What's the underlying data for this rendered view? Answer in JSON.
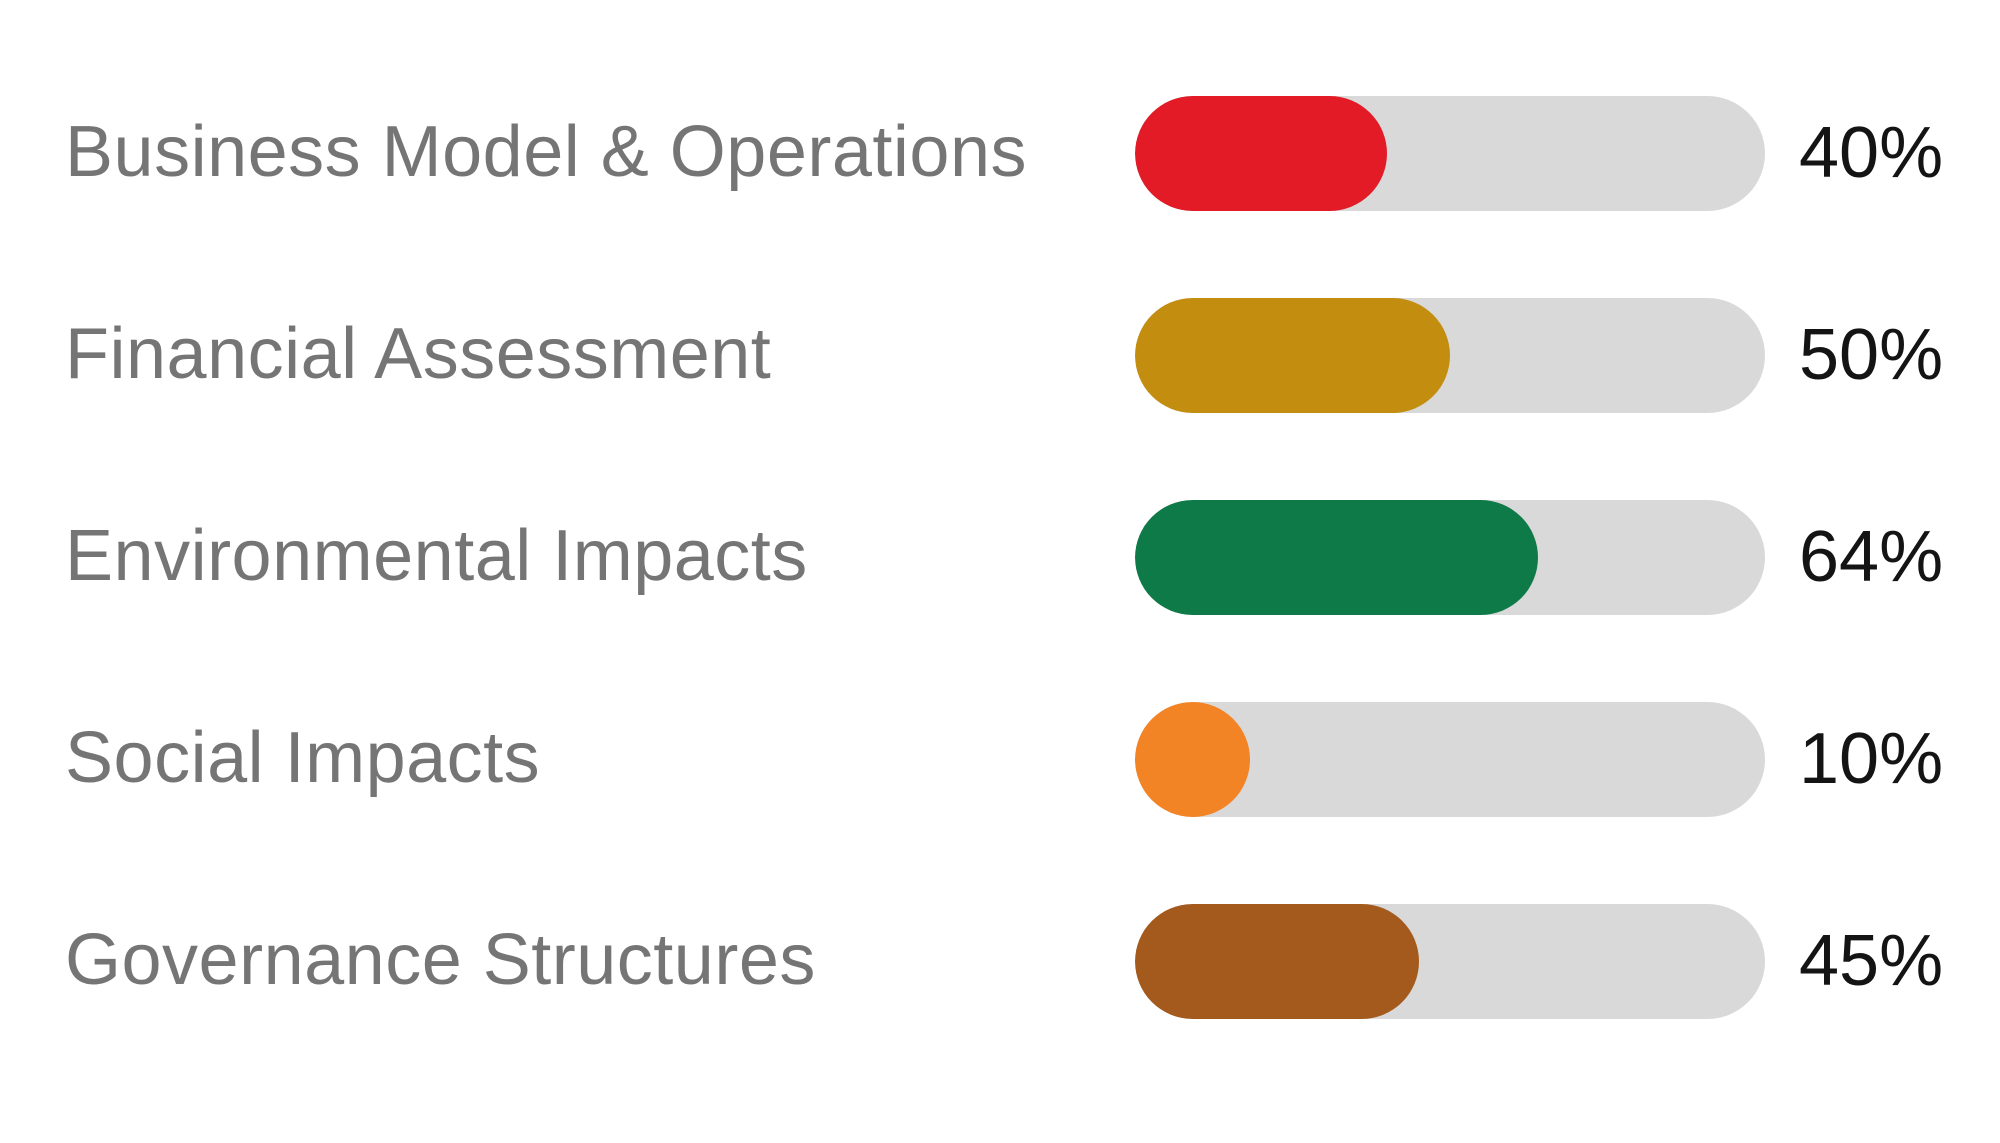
{
  "chart_data": {
    "type": "bar",
    "orientation": "horizontal",
    "title": "",
    "xlabel": "",
    "ylabel": "",
    "xlim": [
      0,
      100
    ],
    "grid": false,
    "legend": "none",
    "track_color": "#d9d9d9",
    "label_color": "#757575",
    "value_color": "#141414",
    "categories": [
      "Business Model & Operations",
      "Financial Assessment",
      "Environmental Impacts",
      "Social Impacts",
      "Governance Structures"
    ],
    "values": [
      40,
      50,
      64,
      10,
      45
    ],
    "items": [
      {
        "label": "Business Model & Operations",
        "value": 40,
        "display": "40%",
        "color": "#e21b27"
      },
      {
        "label": "Financial Assessment",
        "value": 50,
        "display": "50%",
        "color": "#c38e0f"
      },
      {
        "label": "Environmental Impacts",
        "value": 64,
        "display": "64%",
        "color": "#0e7a47"
      },
      {
        "label": "Social Impacts",
        "value": 10,
        "display": "10%",
        "color": "#f28425"
      },
      {
        "label": "Governance Structures",
        "value": 45,
        "display": "45%",
        "color": "#a45a1c"
      }
    ]
  }
}
